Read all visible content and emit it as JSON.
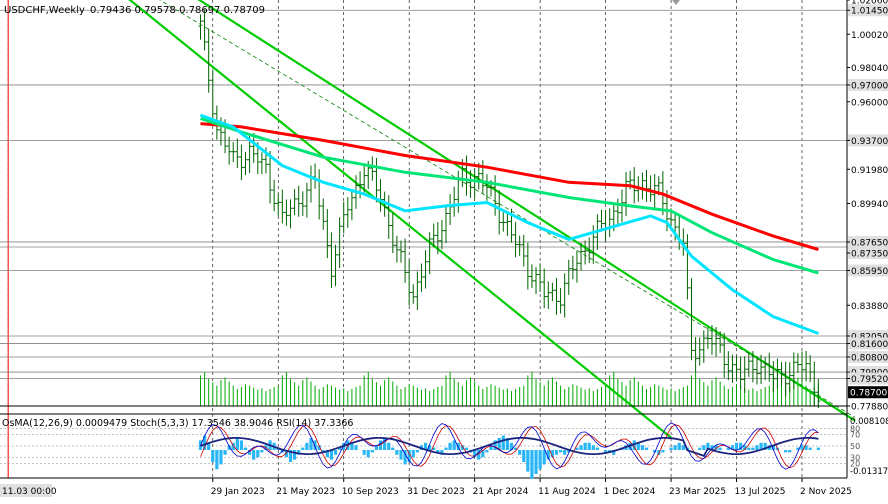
{
  "header": {
    "symbol_tf": "USDCHF,Weekly",
    "ohlc": "0.79436 0.79578 0.78697 0.78709"
  },
  "indicator_header": "OsMA(12,26,9) 0.0009479  Stoch(5,3,3) 17.3546 38.9046  RSI(14) 37.3366",
  "chart_data": {
    "type": "line",
    "instrument": "USDCHF",
    "timeframe": "Weekly",
    "current_price": 0.78709,
    "ylim": [
      0.7788,
      1.0206
    ],
    "y_tick_labels": [
      "1.02060",
      "1.01450",
      "1.00020",
      "0.98040",
      "0.97000",
      "0.96000",
      "0.93700",
      "0.91980",
      "0.89940",
      "0.87650",
      "0.87350",
      "0.85950",
      "0.83880",
      "0.82050",
      "0.81600",
      "0.80800",
      "0.79900",
      "0.79520",
      "0.78700",
      "0.77880"
    ],
    "horizontal_levels": [
      1.0145,
      0.97,
      0.937,
      0.8765,
      0.8735,
      0.8595,
      0.8205,
      0.816,
      0.808,
      0.799,
      0.7952
    ],
    "x_tick_labels": [
      "11.03 00:00",
      "29 Jan 2023",
      "21 May 2023",
      "10 Sep 2023",
      "31 Dec 2023",
      "21 Apr 2024",
      "11 Aug 2024",
      "1 Dec 2024",
      "23 Mar 2025",
      "13 Jul 2025",
      "2 Nov 2025"
    ],
    "x_tick_weeks": [
      -47,
      3,
      19,
      35,
      51,
      67,
      83,
      99,
      115,
      131,
      147
    ],
    "price_path": [
      [
        0,
        1.005
      ],
      [
        4,
        0.944
      ],
      [
        8,
        0.925
      ],
      [
        12,
        0.93
      ],
      [
        16,
        0.92
      ],
      [
        20,
        0.89
      ],
      [
        24,
        0.902
      ],
      [
        28,
        0.912
      ],
      [
        32,
        0.862
      ],
      [
        36,
        0.898
      ],
      [
        40,
        0.92
      ],
      [
        44,
        0.905
      ],
      [
        48,
        0.87
      ],
      [
        52,
        0.845
      ],
      [
        56,
        0.872
      ],
      [
        60,
        0.892
      ],
      [
        64,
        0.915
      ],
      [
        68,
        0.915
      ],
      [
        72,
        0.9
      ],
      [
        76,
        0.88
      ],
      [
        80,
        0.862
      ],
      [
        84,
        0.845
      ],
      [
        88,
        0.845
      ],
      [
        92,
        0.865
      ],
      [
        96,
        0.88
      ],
      [
        100,
        0.89
      ],
      [
        104,
        0.907
      ],
      [
        108,
        0.912
      ],
      [
        112,
        0.905
      ],
      [
        116,
        0.885
      ],
      [
        118,
        0.875
      ],
      [
        120,
        0.81
      ],
      [
        124,
        0.82
      ],
      [
        128,
        0.808
      ],
      [
        132,
        0.796
      ],
      [
        136,
        0.805
      ],
      [
        140,
        0.795
      ],
      [
        144,
        0.8
      ],
      [
        148,
        0.802
      ],
      [
        151,
        0.787
      ]
    ],
    "series": [
      {
        "id": "ema-red",
        "color": "#ff0000",
        "points": [
          [
            0,
            0.947
          ],
          [
            10,
            0.945
          ],
          [
            30,
            0.937
          ],
          [
            50,
            0.928
          ],
          [
            70,
            0.921
          ],
          [
            90,
            0.912
          ],
          [
            105,
            0.91
          ],
          [
            113,
            0.905
          ],
          [
            125,
            0.893
          ],
          [
            140,
            0.88
          ],
          [
            151,
            0.872
          ]
        ]
      },
      {
        "id": "ema-green",
        "color": "#00e676",
        "points": [
          [
            0,
            0.95
          ],
          [
            10,
            0.942
          ],
          [
            30,
            0.927
          ],
          [
            50,
            0.918
          ],
          [
            70,
            0.912
          ],
          [
            90,
            0.903
          ],
          [
            105,
            0.898
          ],
          [
            115,
            0.895
          ],
          [
            125,
            0.882
          ],
          [
            140,
            0.866
          ],
          [
            151,
            0.858
          ]
        ]
      },
      {
        "id": "ema-cyan",
        "color": "#00e5ff",
        "points": [
          [
            0,
            0.952
          ],
          [
            8,
            0.945
          ],
          [
            20,
            0.922
          ],
          [
            30,
            0.912
          ],
          [
            40,
            0.905
          ],
          [
            50,
            0.895
          ],
          [
            60,
            0.898
          ],
          [
            70,
            0.9
          ],
          [
            80,
            0.888
          ],
          [
            90,
            0.878
          ],
          [
            100,
            0.885
          ],
          [
            110,
            0.892
          ],
          [
            114,
            0.888
          ],
          [
            120,
            0.868
          ],
          [
            130,
            0.848
          ],
          [
            140,
            0.832
          ],
          [
            151,
            0.822
          ]
        ]
      }
    ],
    "trend_lines": [
      {
        "id": "channel-upper-1",
        "color": "#00cc00",
        "from": [
          -22,
          1.03
        ],
        "to": [
          115,
          0.76
        ]
      },
      {
        "id": "channel-upper-2",
        "color": "#00cc00",
        "from": [
          -5,
          1.028
        ],
        "to": [
          160,
          0.77
        ]
      },
      {
        "id": "dashed-mid",
        "color": "#008000",
        "from": [
          -15,
          1.028
        ],
        "to": [
          160,
          0.772
        ]
      }
    ],
    "volume_values": [
      45,
      50,
      40,
      35,
      30,
      38,
      42,
      36,
      30,
      25,
      28,
      32,
      30,
      27,
      24,
      26,
      22,
      25,
      28,
      30
    ],
    "oscillator": {
      "ylim": [
        -0.013172,
        0.008108
      ],
      "tick_labels": [
        "0.008108",
        "-0.013172"
      ],
      "stoch_levels": [
        80,
        70,
        50,
        30,
        20
      ],
      "rsi_levels": [
        70,
        50,
        30
      ],
      "osma_hist": [
        4,
        6,
        3,
        -5,
        -8,
        -6,
        -2,
        2,
        3,
        5,
        4,
        1,
        -2,
        -4,
        -3,
        -1,
        2,
        4,
        3,
        1,
        -1,
        -3,
        -5,
        -4,
        -2,
        1,
        3,
        5,
        4,
        2,
        -1,
        -3,
        -4,
        -2,
        1,
        3,
        4,
        3,
        2,
        0,
        -2,
        -3,
        -1,
        2,
        4,
        5,
        3,
        1,
        -2,
        -4,
        -6,
        -5,
        -3,
        -1,
        2,
        3,
        2,
        1,
        -1,
        -2,
        1,
        3,
        4,
        3,
        2,
        1,
        -1,
        -3,
        -4,
        -3,
        -1,
        2,
        4,
        5,
        6,
        5,
        3,
        1,
        -2,
        -5,
        -9,
        -12,
        -10,
        -8,
        -6,
        -4,
        -3,
        -2,
        -1,
        -2,
        -1,
        0,
        1,
        2,
        3,
        3,
        2,
        1,
        0,
        -1,
        -1,
        -2,
        0,
        1,
        2,
        3,
        4,
        3,
        2,
        1,
        0,
        -1,
        -2,
        -1,
        0,
        1,
        2,
        3,
        2,
        1,
        0,
        0,
        1,
        2,
        3,
        2,
        2,
        1,
        0,
        1,
        2,
        3,
        3,
        2,
        1,
        1,
        2,
        3,
        3,
        2,
        2,
        1,
        0,
        -1,
        -1,
        0,
        1,
        2,
        2,
        1,
        0,
        1
      ],
      "stoch_main_color": "#0000cc",
      "stoch_signal_color": "#cc0000",
      "rsi_color": "#1a237e",
      "hist_color": "#29b6f6"
    }
  },
  "colors": {
    "background": "#ffffff",
    "grid": "#000000",
    "price_bars": "#006400",
    "level_lines": "#808080",
    "price_tag": "#000000"
  }
}
